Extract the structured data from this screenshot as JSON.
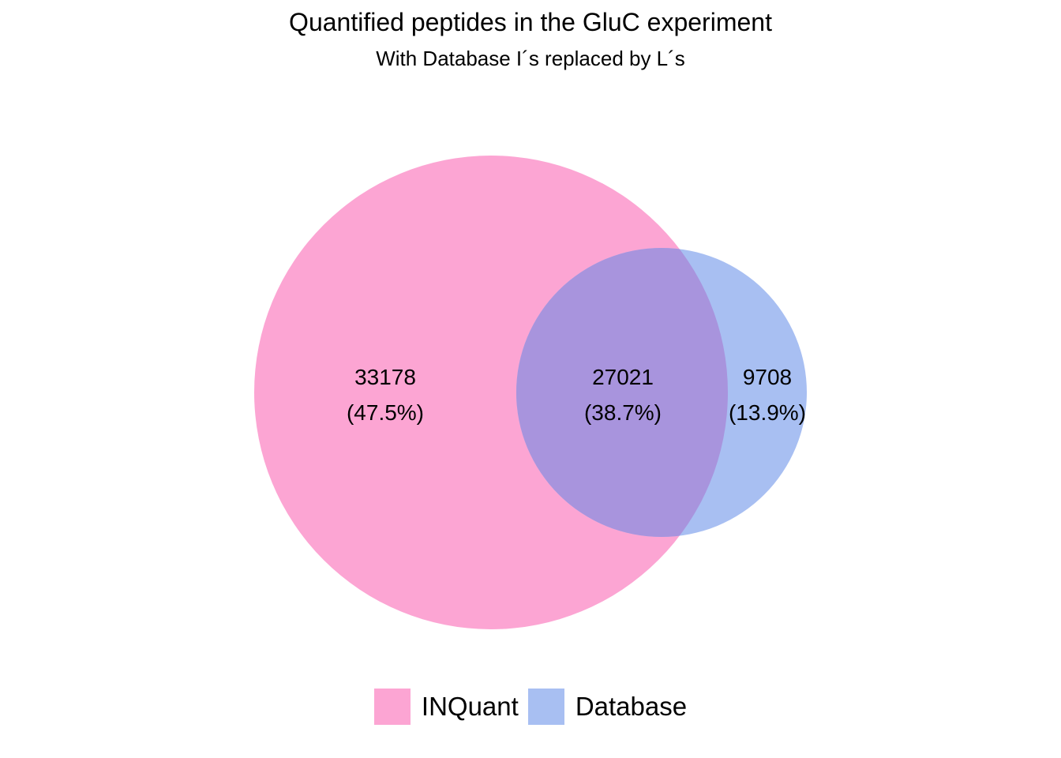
{
  "title": "Quantified peptides in the GluC experiment",
  "subtitle": "With Database I´s replaced by L´s",
  "sets": [
    {
      "name": "INQuant",
      "color": "#fca5d3"
    },
    {
      "name": "Database",
      "color": "#a8bff2"
    }
  ],
  "overlap_color": "#a894dd",
  "regions": {
    "inquant_only": {
      "count": "33178",
      "percent": "(47.5%)"
    },
    "both": {
      "count": "27021",
      "percent": "(38.7%)"
    },
    "database_only": {
      "count": "9708",
      "percent": "(13.9%)"
    }
  }
}
